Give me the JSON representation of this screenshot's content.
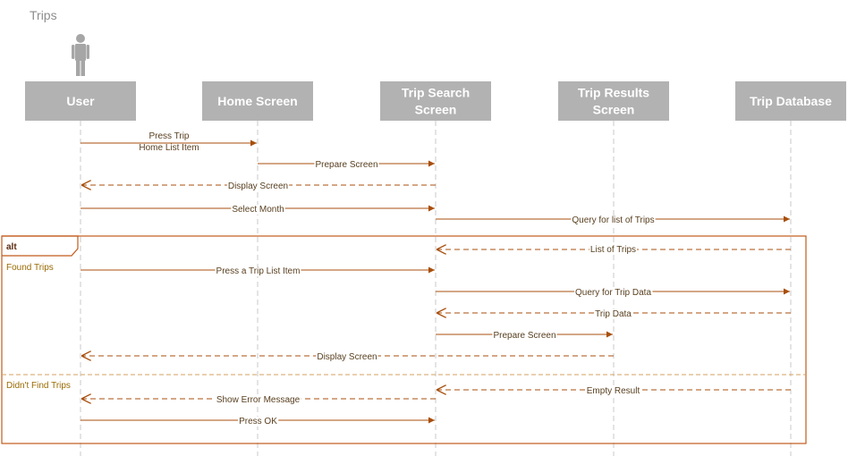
{
  "title": "Trips",
  "colors": {
    "arrow": "#a84f0c",
    "participant_box": "#b2b2b2",
    "participant_text": "#ffffff",
    "lifeline": "#c8c8c8",
    "actor": "#a6a6a6",
    "frame": "#c25a1a",
    "guard_text": "#9a6a00",
    "label_text": "#5a4020",
    "title_text": "#8c8c8c"
  },
  "participants": [
    {
      "id": "user",
      "label": "User",
      "actor": true
    },
    {
      "id": "home",
      "label": "Home Screen"
    },
    {
      "id": "search",
      "label": "Trip Search\nScreen"
    },
    {
      "id": "results",
      "label": "Trip Results\nScreen"
    },
    {
      "id": "db",
      "label": "Trip Database"
    }
  ],
  "messages": [
    {
      "from": "user",
      "to": "home",
      "label": "Press Trip\nHome List Item",
      "type": "sync"
    },
    {
      "from": "home",
      "to": "search",
      "label": "Prepare Screen",
      "type": "sync"
    },
    {
      "from": "search",
      "to": "user",
      "label": "Display Screen",
      "type": "return"
    },
    {
      "from": "user",
      "to": "search",
      "label": "Select Month",
      "type": "sync"
    },
    {
      "from": "search",
      "to": "db",
      "label": "Query for list of Trips",
      "type": "sync"
    },
    {
      "from": "db",
      "to": "search",
      "label": "List of Trips",
      "type": "return"
    },
    {
      "from": "user",
      "to": "search",
      "label": "Press a Trip List Item",
      "type": "sync"
    },
    {
      "from": "search",
      "to": "db",
      "label": "Query for Trip Data",
      "type": "sync"
    },
    {
      "from": "db",
      "to": "search",
      "label": "Trip Data",
      "type": "return"
    },
    {
      "from": "search",
      "to": "results",
      "label": "Prepare Screen",
      "type": "sync"
    },
    {
      "from": "results",
      "to": "user",
      "label": "Display Screen",
      "type": "return"
    },
    {
      "from": "db",
      "to": "search",
      "label": "Empty Result",
      "type": "return"
    },
    {
      "from": "search",
      "to": "user",
      "label": "Show Error Message",
      "type": "return"
    },
    {
      "from": "user",
      "to": "search",
      "label": "Press OK",
      "type": "sync"
    }
  ],
  "fragment": {
    "operator": "alt",
    "guards": [
      "Found Trips",
      "Didn't Find Trips"
    ]
  }
}
